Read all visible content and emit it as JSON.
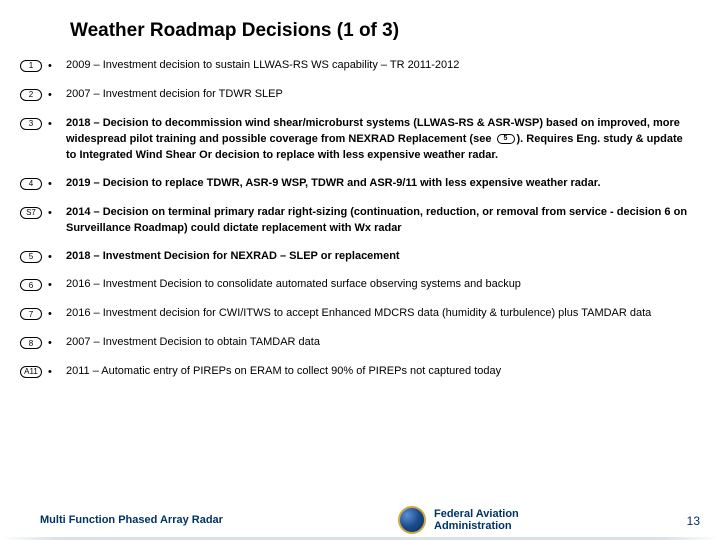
{
  "title": "Weather Roadmap Decisions (1 of 3)",
  "items": [
    {
      "tag": "1",
      "bold": false,
      "text": "2009 – Investment decision to sustain LLWAS-RS WS capability – TR 2011-2012"
    },
    {
      "tag": "2",
      "bold": false,
      "text": "2007 – Investment decision for TDWR SLEP"
    },
    {
      "tag": "3",
      "bold": true,
      "text": "2018 – Decision to decommission wind shear/microburst systems (LLWAS-RS & ASR-WSP) based on improved, more widespread pilot training and possible coverage from NEXRAD Replacement (see {{5}}).  Requires Eng. study & update to Integrated Wind Shear Or decision to replace with less expensive weather radar."
    },
    {
      "tag": "4",
      "bold": true,
      "text": " 2019 – Decision to replace TDWR, ASR-9 WSP, TDWR and ASR-9/11 with less expensive weather radar."
    },
    {
      "tag": "S7",
      "bold": true,
      "text": "2014 – Decision on terminal primary radar right-sizing (continuation, reduction, or removal from service - decision 6 on Surveillance Roadmap) could dictate replacement with Wx radar"
    },
    {
      "tag": "5",
      "bold": true,
      "text": "2018 – Investment Decision for NEXRAD – SLEP or replacement"
    },
    {
      "tag": "6",
      "bold": false,
      "text": "2016 – Investment Decision to consolidate automated surface observing systems and backup"
    },
    {
      "tag": "7",
      "bold": false,
      "text": "2016 – Investment decision for CWI/ITWS to accept Enhanced MDCRS data (humidity & turbulence) plus TAMDAR data",
      "continuation": true
    },
    {
      "tag": "8",
      "bold": false,
      "text": "2007 – Investment Decision to obtain TAMDAR data"
    },
    {
      "tag": "A11",
      "bold": false,
      "text": "2011 – Automatic entry of PIREPs on ERAM to collect 90% of PIREPs not captured today"
    }
  ],
  "inline_ref": "5",
  "footer": {
    "left": "Multi Function Phased Array Radar",
    "agency_line1": "Federal Aviation",
    "agency_line2": "Administration",
    "page": "13"
  },
  "colors": {
    "text": "#000000",
    "footer_text": "#003366",
    "seal_border": "#c9a94a"
  }
}
